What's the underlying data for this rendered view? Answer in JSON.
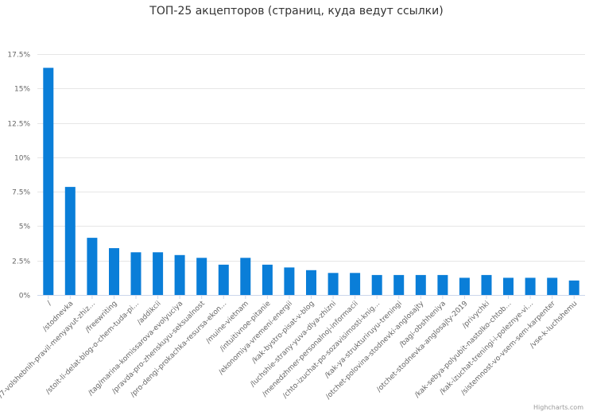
{
  "chart_data": {
    "type": "bar",
    "title": "ТОП-25 акцепторов (страниц, куда ведут ссылки)",
    "xlabel": "",
    "ylabel": "",
    "ylim": [
      0,
      17.5
    ],
    "y_ticks": [
      "0%",
      "2.5%",
      "5%",
      "7.5%",
      "10%",
      "12.5%",
      "15%",
      "17.5%"
    ],
    "y_tick_values": [
      0,
      2.5,
      5,
      7.5,
      10,
      12.5,
      15,
      17.5
    ],
    "grid": true,
    "legend": "none",
    "bar_color": "#0a7ed8",
    "categories": [
      "/",
      "/stodnevka",
      "/7-volshebnih-pravil-menyayut-zhiz…",
      "/freewriting",
      "/stoit-li-delat-blog-o-chem-tuda-pi…",
      "/addikcii",
      "/tag/marina-komissarova-evolyuciya",
      "/pravda-pro-zhenskuyu-seksualnost",
      "/pro-dengi-prokachka-resursa-ekon…",
      "/muine-vietnam",
      "/intuitivnoe-pitanie",
      "/ekonomiya-vremeni-energii",
      "/kak-bystro-pisat-v-blog",
      "/luchshie-strany-yuva-dlya-zhizni",
      "/menedzhmer-personalnoj-informacii",
      "/chto-izuchat-po-sozavisimosti-knig…",
      "/kak-ya-strukturiruyu-treningi",
      "/otchet-polovina-stodnevki-anglosajty",
      "/bagi-obshheniya",
      "/otchet-stodnevka-anglosajty-2019",
      "/privychki",
      "/kak-sebya-polyubit-nastolko-chtob…",
      "/kak-izuchat-treningi-i-poleznye-vi…",
      "/sistemnost-vo-vsem-sem-karpenter",
      "/vse-k-luchshemu"
    ],
    "values": [
      16.5,
      7.85,
      4.15,
      3.4,
      3.1,
      3.1,
      2.9,
      2.7,
      2.2,
      2.7,
      2.2,
      2.0,
      1.8,
      1.6,
      1.6,
      1.45,
      1.45,
      1.45,
      1.45,
      1.25,
      1.45,
      1.25,
      1.25,
      1.25,
      1.05
    ],
    "credits": "Highcharts.com"
  }
}
